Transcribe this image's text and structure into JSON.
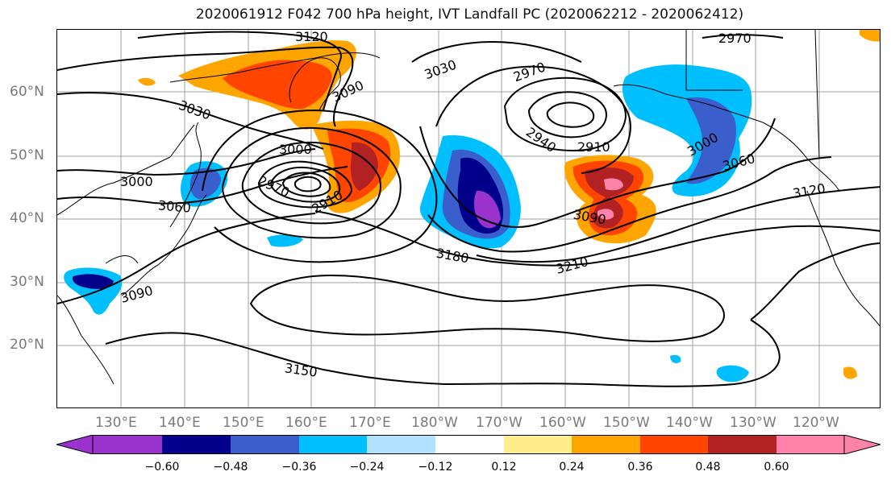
{
  "title": "2020061912 F042 700 hPa height, IVT Landfall PC (2020062212 - 2020062412)",
  "latitude_labels": [
    "60°N",
    "50°N",
    "40°N",
    "30°N",
    "20°N"
  ],
  "longitude_labels": [
    "130°E",
    "140°E",
    "150°E",
    "160°E",
    "170°E",
    "180°W",
    "170°W",
    "160°W",
    "150°W",
    "140°W",
    "130°W",
    "120°W"
  ],
  "contour_labels": [
    "3120",
    "3090",
    "3030",
    "3030",
    "2970",
    "3000",
    "2970",
    "2910",
    "2940",
    "3000",
    "3060",
    "3120",
    "3000",
    "3060",
    "2910",
    "2970",
    "3090",
    "3180",
    "3210",
    "3090",
    "3150"
  ],
  "colorbar": {
    "ticks": [
      "−0.60",
      "−0.48",
      "−0.36",
      "−0.24",
      "−0.12",
      "0.12",
      "0.24",
      "0.36",
      "0.48",
      "0.60"
    ],
    "colors": [
      "#9a32cd",
      "#00008b",
      "#3a5fcd",
      "#00bfff",
      "#b0e2ff",
      "#ffffff",
      "#ffec8b",
      "#ffa500",
      "#ff4500",
      "#b22222",
      "#ff82ab"
    ]
  },
  "fill_colors": {
    "purple": "#9a32cd",
    "navy": "#00008b",
    "royal_blue": "#3a5fcd",
    "deep_sky_blue": "#00bfff",
    "light_sky_blue": "#b0e2ff",
    "light_yellow": "#ffec8b",
    "orange": "#ffa500",
    "orange_red": "#ff4500",
    "firebrick": "#b22222",
    "pink": "#ff82ab"
  }
}
